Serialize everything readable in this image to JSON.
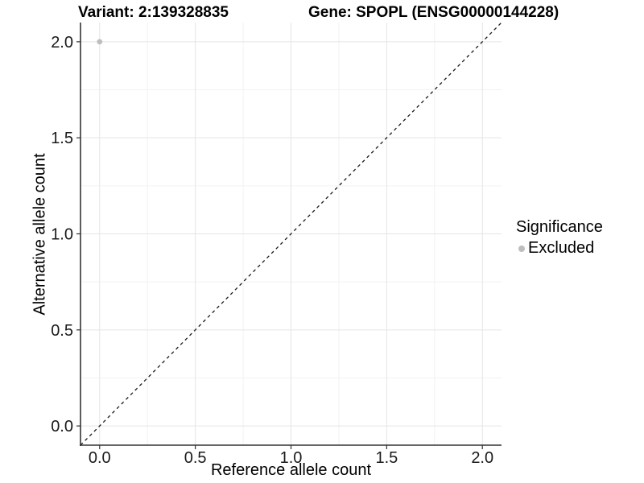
{
  "titles": {
    "variant": "Variant: 2:139328835",
    "gene": "Gene: SPOPL (ENSG00000144228)"
  },
  "colors": {
    "background": "#ffffff",
    "grid_major": "#e5e5e5",
    "grid_minor": "#f2f2f2",
    "axis_line": "#333333",
    "tick_mark": "#333333",
    "tick_text": "#1a1a1a",
    "point_excluded": "#bebebe"
  },
  "chart_data": {
    "type": "scatter",
    "title_left": "Variant: 2:139328835",
    "title_right": "Gene: SPOPL (ENSG00000144228)",
    "xlabel": "Reference allele count",
    "ylabel": "Alternative allele count",
    "xlim": [
      -0.1,
      2.1
    ],
    "ylim": [
      -0.1,
      2.1
    ],
    "x_ticks": [
      0.0,
      0.5,
      1.0,
      1.5,
      2.0
    ],
    "y_ticks": [
      0.0,
      0.5,
      1.0,
      1.5,
      2.0
    ],
    "x_minor_ticks": [
      0.25,
      0.75,
      1.25,
      1.75
    ],
    "y_minor_ticks": [
      0.25,
      0.75,
      1.25,
      1.75
    ],
    "tick_decimals": 1,
    "grid": "major+minor",
    "axis_lines": "left+bottom",
    "series": [
      {
        "name": "Excluded",
        "marker": "circle",
        "color": "#bebebe",
        "point_radius": 3.4,
        "points": [
          {
            "x": 0.0,
            "y": 2.0
          }
        ]
      }
    ],
    "reference_line": {
      "kind": "identity",
      "linetype": "dashed",
      "color": "#1a1a1a",
      "from": -0.1,
      "to": 2.1
    },
    "legend": {
      "title": "Significance",
      "position": "right",
      "entries": [
        {
          "label": "Excluded",
          "marker": "circle",
          "color": "#bebebe"
        }
      ]
    }
  }
}
